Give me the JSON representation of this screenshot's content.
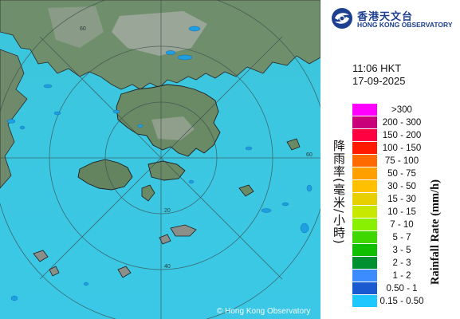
{
  "map": {
    "copyright": "© Hong Kong Observatory",
    "range_ring_labels": [
      "20",
      "40",
      "60"
    ],
    "colors": {
      "sea": "#33c3dd",
      "land": "#6a8a68",
      "rain_light": "#1e9fe0"
    }
  },
  "panel": {
    "logo": {
      "cn": "香港天文台",
      "en": "HONG KONG OBSERVATORY",
      "icon": "hko-logo-icon"
    },
    "time": "11:06 HKT",
    "date": "17-09-2025",
    "legend_title_cn": "降雨率(毫米/小時)",
    "legend_title_en": "Rainfall Rate (mm/h)",
    "legend": [
      {
        "label": ">300",
        "color": "#ff00ff"
      },
      {
        "label": "200 - 300",
        "color": "#c8007a"
      },
      {
        "label": "150 - 200",
        "color": "#ff0040"
      },
      {
        "label": "100 - 150",
        "color": "#ff1a00"
      },
      {
        "label": "75 - 100",
        "color": "#ff6a00"
      },
      {
        "label": "50 - 75",
        "color": "#ffa000"
      },
      {
        "label": "30 - 50",
        "color": "#ffc000"
      },
      {
        "label": "15 - 30",
        "color": "#e8d000"
      },
      {
        "label": "10 - 15",
        "color": "#c8e800"
      },
      {
        "label": "7 - 10",
        "color": "#88f000"
      },
      {
        "label": "5 - 7",
        "color": "#3ed800"
      },
      {
        "label": "3 - 5",
        "color": "#10c000"
      },
      {
        "label": "2 - 3",
        "color": "#009030"
      },
      {
        "label": "1 - 2",
        "color": "#3c8cff"
      },
      {
        "label": "0.50 - 1",
        "color": "#1a5ad0"
      },
      {
        "label": "0.15 - 0.50",
        "color": "#1ec8ff"
      }
    ]
  }
}
